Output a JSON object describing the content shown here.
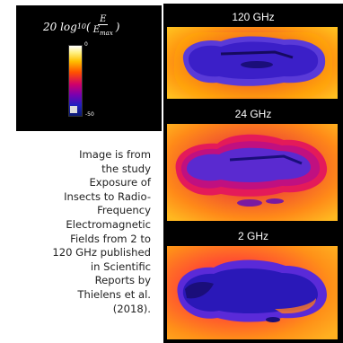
{
  "legend": {
    "formula_prefix": "20 log",
    "formula_sub": "10",
    "formula_num": "E",
    "formula_den": "E",
    "formula_den_sub": "max",
    "colorbar_top": "0",
    "colorbar_bottom": "-50"
  },
  "panels": [
    {
      "label": "120 GHz"
    },
    {
      "label": "24 GHz"
    },
    {
      "label": "2 GHz"
    }
  ],
  "caption": {
    "lines": [
      "Image is from",
      "the study",
      "Exposure of",
      "Insects to Radio-",
      "Frequency",
      "Electromagnetic",
      "Fields from 2 to",
      "120 GHz published",
      "in Scientific",
      "Reports by",
      "Thielens et al.",
      "(2018)."
    ]
  },
  "colors": {
    "bg_hot": "#f0503a",
    "bg_warm": "#ffb000",
    "body_cold": "#3b1fc8",
    "body_deep": "#1a0e7a"
  }
}
